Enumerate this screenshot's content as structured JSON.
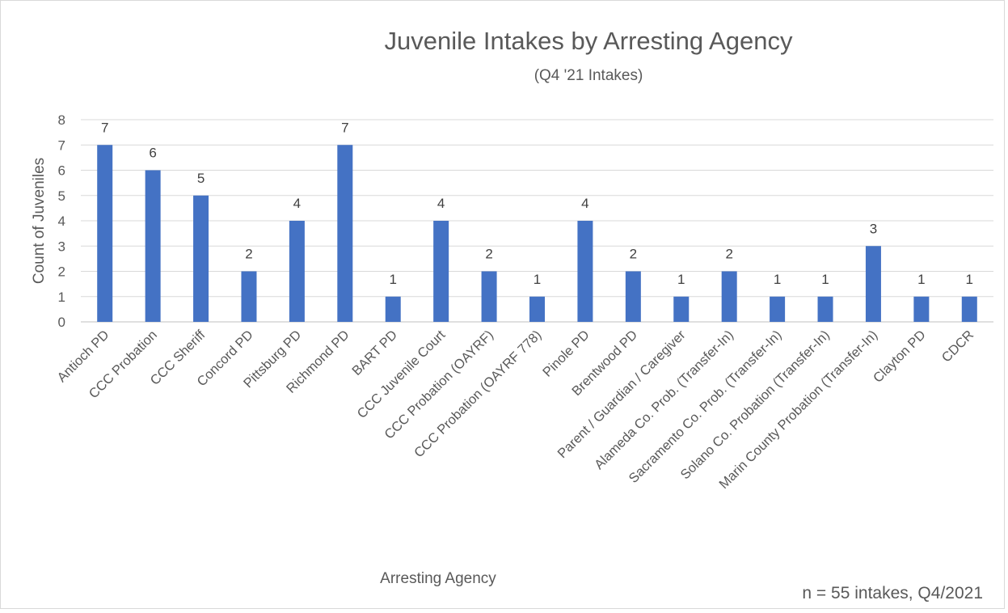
{
  "chart_data": {
    "type": "bar",
    "title": "Juvenile Intakes by Arresting Agency",
    "subtitle": "(Q4 '21 Intakes)",
    "xlabel": "Arresting Agency",
    "ylabel": "Count of Juveniles",
    "ylim": [
      0,
      8
    ],
    "yticks": [
      "0",
      "1",
      "2",
      "3",
      "4",
      "5",
      "6",
      "7",
      "8"
    ],
    "grid": true,
    "legend": "none",
    "bar_color": "#4472c4",
    "categories": [
      "Antioch PD",
      "CCC Probation",
      "CCC Sheriff",
      "Concord PD",
      "Pittsburg PD",
      "Richmond PD",
      "BART PD",
      "CCC Juvenile Court",
      "CCC Probation (OAYRF)",
      "CCC Probation (OAYRF 778)",
      "Pinole PD",
      "Brentwood PD",
      "Parent / Guardian / Caregiver",
      "Alameda Co. Prob. (Transfer-In)",
      "Sacramento Co. Prob. (Transfer-In)",
      "Solano Co. Probation (Transfer-In)",
      "Marin County Probation (Transfer-In)",
      "Clayton PD",
      "CDCR"
    ],
    "values": [
      7,
      6,
      5,
      2,
      4,
      7,
      1,
      4,
      2,
      1,
      4,
      2,
      1,
      2,
      1,
      1,
      3,
      1,
      1
    ],
    "annotation": "n = 55 intakes, Q4/2021"
  }
}
